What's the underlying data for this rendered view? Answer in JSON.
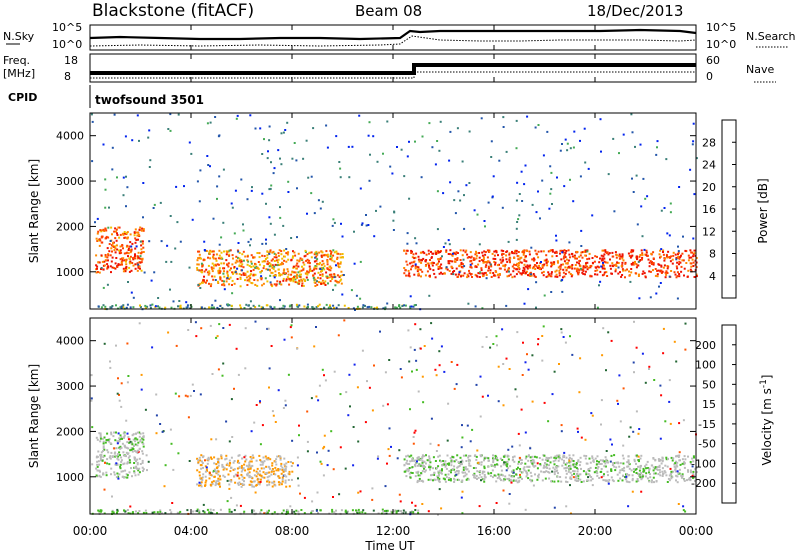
{
  "header": {
    "station": "Blackstone (fitACF)",
    "beam": "Beam 08",
    "date": "18/Dec/2013"
  },
  "panels": {
    "nsky": {
      "label": "N.Sky",
      "right_label": "N.Search",
      "ticks_left": [
        "10^5",
        "10^0"
      ],
      "ticks_right": [
        "10^5",
        "10^0"
      ]
    },
    "freq": {
      "label_lines": [
        "Freq.",
        "[MHz]"
      ],
      "right_label": "Nave",
      "ticks_left": [
        "18",
        "8"
      ],
      "ticks_right": [
        "60",
        "0"
      ]
    },
    "cpid": {
      "label": "CPID",
      "program": "twofsound 3501"
    }
  },
  "colors": {
    "power_scale": [
      "#0022ee",
      "#2255aa",
      "#3a7f78",
      "#44aa55",
      "#f0c000",
      "#ff8800",
      "#ff4400",
      "#ee1100"
    ],
    "velocity_scale": [
      "#ff0000",
      "#ff5500",
      "#ff9900",
      "#bbbbbb",
      "#bbbbbb",
      "#44bb22",
      "#226633",
      "#2244aa",
      "#1122ee"
    ]
  },
  "chart_data": [
    {
      "type": "heatmap",
      "title": "",
      "xlabel": "",
      "ylabel": "Slant Range [km]",
      "xlim": [
        0,
        24
      ],
      "ylim": [
        180,
        4500
      ],
      "x_ticks": [
        "00:00",
        "04:00",
        "08:00",
        "12:00",
        "16:00",
        "20:00",
        "00:00"
      ],
      "y_ticks": [
        "1000",
        "2000",
        "3000",
        "4000"
      ],
      "colorbar": {
        "title": "Power [dB]",
        "range": [
          0,
          32
        ],
        "ticks": [
          "4",
          "8",
          "12",
          "16",
          "20",
          "24",
          "28"
        ]
      },
      "echo_regions": [
        {
          "t_start": 0.2,
          "t_end": 2.1,
          "range_start": 1000,
          "range_end": 2000,
          "level": 26
        },
        {
          "t_start": 4.2,
          "t_end": 10.0,
          "range_start": 700,
          "range_end": 1500,
          "level": 22
        },
        {
          "t_start": 12.4,
          "t_end": 24.0,
          "range_start": 900,
          "range_end": 1500,
          "level": 27
        },
        {
          "t_start": 0.2,
          "t_end": 13.0,
          "range_start": 200,
          "range_end": 300,
          "level": 12
        }
      ]
    },
    {
      "type": "heatmap",
      "title": "",
      "xlabel": "Time UT",
      "ylabel": "Slant Range [km]",
      "xlim": [
        0,
        24
      ],
      "ylim": [
        180,
        4500
      ],
      "x_ticks": [
        "00:00",
        "04:00",
        "08:00",
        "12:00",
        "16:00",
        "20:00",
        "00:00"
      ],
      "y_ticks": [
        "1000",
        "2000",
        "3000",
        "4000"
      ],
      "colorbar": {
        "title": "Velocity [m s^-1]",
        "range": [
          -250,
          250
        ],
        "ticks": [
          "200",
          "100",
          "50",
          "15",
          "-15",
          "-50",
          "-100",
          "-200"
        ]
      },
      "echo_regions": [
        {
          "t_start": 0.2,
          "t_end": 2.1,
          "range_start": 1000,
          "range_end": 2000,
          "level": 0
        },
        {
          "t_start": 4.2,
          "t_end": 8.0,
          "range_start": 800,
          "range_end": 1500,
          "level": -70
        },
        {
          "t_start": 12.4,
          "t_end": 24.0,
          "range_start": 900,
          "range_end": 1500,
          "level": 0
        },
        {
          "t_start": 0.2,
          "t_end": 13.0,
          "range_start": 200,
          "range_end": 300,
          "level": 40
        }
      ]
    }
  ]
}
